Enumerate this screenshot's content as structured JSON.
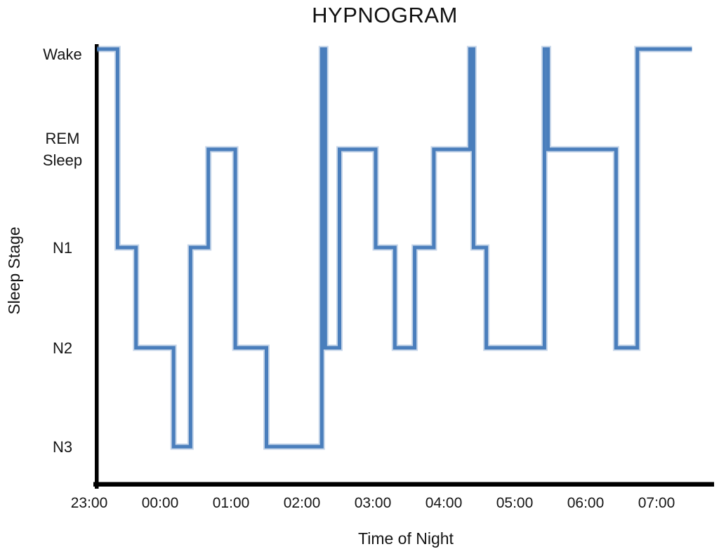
{
  "chart_data": {
    "type": "line",
    "subtype": "step-hypnogram",
    "title": "HYPNOGRAM",
    "xlabel": "Time of Night",
    "ylabel": "Sleep Stage",
    "line_color": "#4a7ebc",
    "line_glow_color": "rgba(110,150,200,0.40)",
    "axis_color": "#000000",
    "grid": "off",
    "legend": "none",
    "stages_top_to_bottom": [
      "Wake",
      "REM Sleep",
      "N1",
      "N2",
      "N3"
    ],
    "x_axis_note": "t = hours after 23:00",
    "x_ticks": [
      {
        "label": "23:00",
        "t": 0
      },
      {
        "label": "00:00",
        "t": 1
      },
      {
        "label": "01:00",
        "t": 2
      },
      {
        "label": "02:00",
        "t": 3
      },
      {
        "label": "03:00",
        "t": 4
      },
      {
        "label": "04:00",
        "t": 5
      },
      {
        "label": "05:00",
        "t": 6
      },
      {
        "label": "06:00",
        "t": 7
      },
      {
        "label": "07:00",
        "t": 8
      }
    ],
    "segments": [
      {
        "stage": "Wake",
        "start": 0.11,
        "end": 0.4
      },
      {
        "stage": "N1",
        "start": 0.4,
        "end": 0.66
      },
      {
        "stage": "N2",
        "start": 0.66,
        "end": 1.19
      },
      {
        "stage": "N3",
        "start": 1.19,
        "end": 1.43
      },
      {
        "stage": "N1",
        "start": 1.43,
        "end": 1.68
      },
      {
        "stage": "REM Sleep",
        "start": 1.68,
        "end": 2.06
      },
      {
        "stage": "N2",
        "start": 2.06,
        "end": 2.5
      },
      {
        "stage": "N3",
        "start": 2.5,
        "end": 3.28
      },
      {
        "stage": "Wake",
        "start": 3.28,
        "end": 3.33
      },
      {
        "stage": "N2",
        "start": 3.33,
        "end": 3.53
      },
      {
        "stage": "REM Sleep",
        "start": 3.53,
        "end": 4.04
      },
      {
        "stage": "N1",
        "start": 4.04,
        "end": 4.31
      },
      {
        "stage": "N2",
        "start": 4.31,
        "end": 4.59
      },
      {
        "stage": "N1",
        "start": 4.59,
        "end": 4.86
      },
      {
        "stage": "REM Sleep",
        "start": 4.86,
        "end": 5.37
      },
      {
        "stage": "Wake",
        "start": 5.37,
        "end": 5.42
      },
      {
        "stage": "N1",
        "start": 5.42,
        "end": 5.6
      },
      {
        "stage": "N2",
        "start": 5.6,
        "end": 6.42
      },
      {
        "stage": "Wake",
        "start": 6.42,
        "end": 6.47
      },
      {
        "stage": "REM Sleep",
        "start": 6.47,
        "end": 7.43
      },
      {
        "stage": "N2",
        "start": 7.43,
        "end": 7.73
      },
      {
        "stage": "Wake",
        "start": 7.73,
        "end": 8.5
      }
    ]
  }
}
